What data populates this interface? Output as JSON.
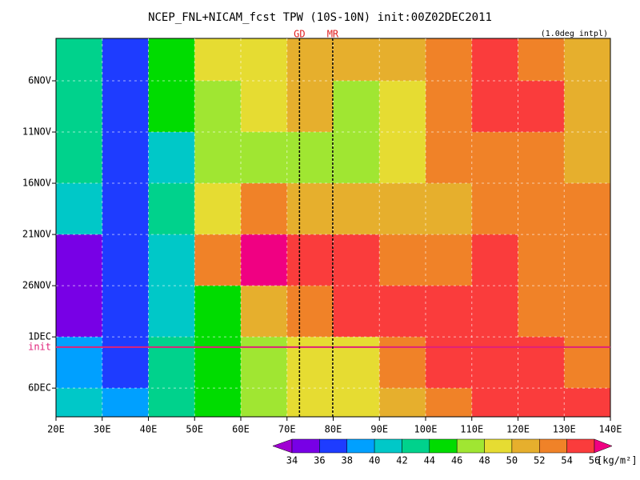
{
  "chart_data": {
    "type": "heatmap",
    "title": "NCEP_FNL+NICAM_fcst TPW (10S-10N) init:00Z02DEC2011",
    "subtitle": "(1.0deg intpl)",
    "xlim": [
      20,
      140
    ],
    "xticks": [
      {
        "value": 20,
        "label": "20E"
      },
      {
        "value": 30,
        "label": "30E"
      },
      {
        "value": 40,
        "label": "40E"
      },
      {
        "value": 50,
        "label": "50E"
      },
      {
        "value": 60,
        "label": "60E"
      },
      {
        "value": 70,
        "label": "70E"
      },
      {
        "value": 80,
        "label": "80E"
      },
      {
        "value": 90,
        "label": "90E"
      },
      {
        "value": 100,
        "label": "100E"
      },
      {
        "value": 110,
        "label": "110E"
      },
      {
        "value": 120,
        "label": "120E"
      },
      {
        "value": 130,
        "label": "130E"
      },
      {
        "value": 140,
        "label": "140E"
      }
    ],
    "ylim": [
      1.86,
      38.8
    ],
    "yticks": [
      {
        "value": 6,
        "label": "6NOV"
      },
      {
        "value": 11,
        "label": "11NOV"
      },
      {
        "value": 16,
        "label": "16NOV"
      },
      {
        "value": 21,
        "label": "21NOV"
      },
      {
        "value": 26,
        "label": "26NOV"
      },
      {
        "value": 31,
        "label": "1DEC"
      },
      {
        "value": 36,
        "label": "6DEC"
      }
    ],
    "grid": true,
    "x_edges": [
      20,
      30,
      40,
      50,
      60,
      70,
      80,
      90,
      100,
      110,
      120,
      130,
      140
    ],
    "y_edges": [
      1.86,
      6,
      11,
      16,
      21,
      26,
      31,
      36,
      38.8
    ],
    "values": [
      [
        42,
        36,
        44,
        48,
        48,
        51,
        50,
        50,
        52,
        54,
        53,
        51
      ],
      [
        43,
        37,
        44,
        47,
        48,
        50,
        46,
        48,
        52,
        54,
        54,
        51
      ],
      [
        43,
        37,
        41,
        46,
        47,
        47,
        46,
        49,
        52,
        53,
        52,
        51
      ],
      [
        41,
        36,
        42,
        49,
        52,
        51,
        50,
        50,
        51,
        53,
        53,
        52
      ],
      [
        35,
        36,
        40,
        52,
        56,
        54,
        54,
        52,
        53,
        55,
        52,
        52
      ],
      [
        34,
        36,
        40,
        44,
        50,
        53,
        55,
        55,
        55,
        54,
        53,
        52
      ],
      [
        38,
        36,
        42,
        45,
        46,
        48,
        49,
        52,
        54,
        55,
        54,
        53
      ],
      [
        40,
        38,
        43,
        45,
        46,
        48,
        49,
        51,
        53,
        54,
        55,
        54
      ]
    ],
    "init": {
      "value": 32,
      "label": "init",
      "color": "#e0207a"
    },
    "markers": [
      {
        "name": "GD",
        "value": 72.7,
        "color": "#e02020"
      },
      {
        "name": "MR",
        "value": 79.9,
        "color": "#e02020"
      }
    ],
    "colorbar": {
      "levels": [
        34,
        36,
        38,
        40,
        42,
        44,
        46,
        48,
        50,
        52,
        54,
        56
      ],
      "colors": [
        "#a000d2",
        "#7800e6",
        "#1e3cff",
        "#00a0ff",
        "#00c8c8",
        "#00d28c",
        "#00dc00",
        "#a0e632",
        "#e6dc32",
        "#e6af2d",
        "#f08228",
        "#fa3c3c",
        "#f00082"
      ],
      "unit": "[kg/m²]"
    }
  }
}
